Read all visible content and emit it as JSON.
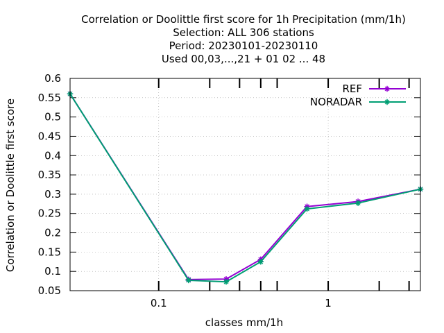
{
  "chart_data": {
    "type": "line",
    "title_lines": [
      "Correlation or Doolittle first score  for 1h Precipitation (mm/1h)",
      "Selection: ALL    306 stations",
      "Period: 20230101-20230110",
      "Used  00,03,...,21  + 01 02 ... 48"
    ],
    "xlabel": "classes mm/1h",
    "ylabel": "Correlation or Doolittle first score",
    "xscale": "log",
    "xlim": [
      0.03,
      3.5
    ],
    "ylim": [
      0.05,
      0.6
    ],
    "x_ticks": [
      {
        "value": 0.1,
        "label": "0.1"
      },
      {
        "value": 1,
        "label": "1"
      }
    ],
    "x_minor_ticks": [
      0.2,
      0.3,
      0.4,
      0.5,
      2,
      3
    ],
    "y_ticks": [
      {
        "value": 0.05,
        "label": "0.05"
      },
      {
        "value": 0.1,
        "label": "0.1"
      },
      {
        "value": 0.15,
        "label": "0.15"
      },
      {
        "value": 0.2,
        "label": "0.2"
      },
      {
        "value": 0.25,
        "label": "0.25"
      },
      {
        "value": 0.3,
        "label": "0.3"
      },
      {
        "value": 0.35,
        "label": "0.35"
      },
      {
        "value": 0.4,
        "label": "0.4"
      },
      {
        "value": 0.45,
        "label": "0.45"
      },
      {
        "value": 0.5,
        "label": "0.5"
      },
      {
        "value": 0.55,
        "label": "0.55"
      },
      {
        "value": 0.6,
        "label": "0.6"
      }
    ],
    "grid": true,
    "legend_position": "top-right",
    "x": [
      0.03,
      0.15,
      0.25,
      0.4,
      0.75,
      1.5,
      3.5
    ],
    "series": [
      {
        "name": "REF",
        "color": "#9400d3",
        "values": [
          0.56,
          0.079,
          0.08,
          0.131,
          0.268,
          0.281,
          0.313
        ]
      },
      {
        "name": "NORADAR",
        "color": "#009e73",
        "values": [
          0.56,
          0.077,
          0.073,
          0.125,
          0.262,
          0.277,
          0.313
        ]
      }
    ]
  }
}
